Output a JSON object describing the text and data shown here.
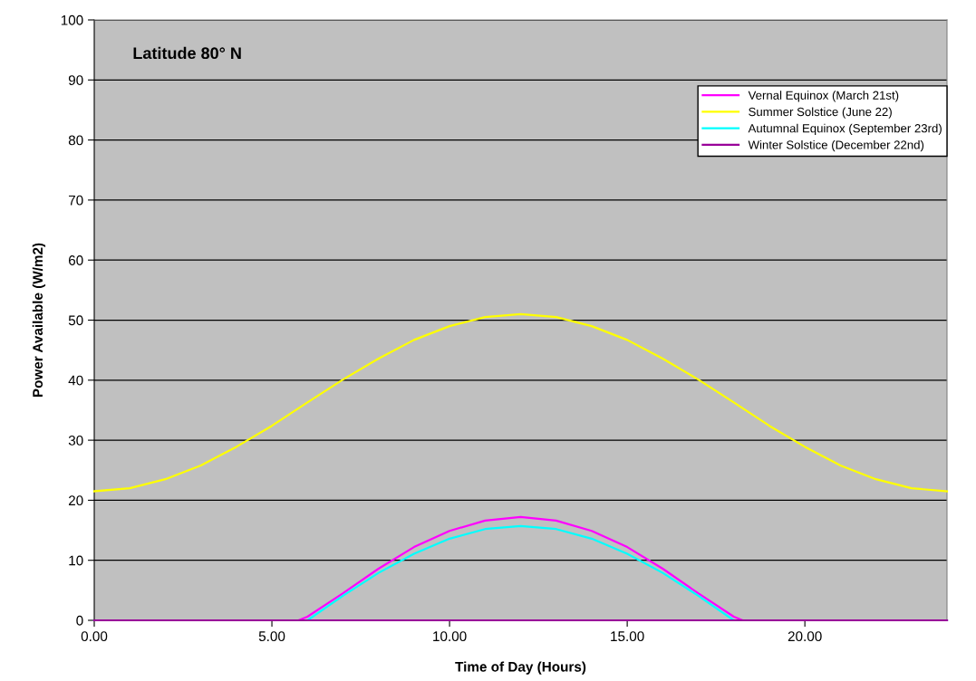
{
  "chart_data": {
    "type": "line",
    "xlabel": "Time of Day (Hours)",
    "ylabel": "Power Available (W/m2)",
    "annotations": [
      "Latitude 80° N"
    ],
    "xlim": [
      0,
      24
    ],
    "xticks": [
      {
        "value": 0,
        "label": "0.00"
      },
      {
        "value": 5,
        "label": "5.00"
      },
      {
        "value": 10,
        "label": "10.00"
      },
      {
        "value": 15,
        "label": "15.00"
      },
      {
        "value": 20,
        "label": "20.00"
      }
    ],
    "ylim": [
      0,
      100
    ],
    "yticks": [
      0,
      10,
      20,
      30,
      40,
      50,
      60,
      70,
      80,
      90,
      100
    ],
    "grid": "y",
    "legend": "top right",
    "marker": "none",
    "line_style": "solid",
    "series": [
      {
        "name": "Vernal Equinox (March 21st)",
        "color": "#ff00ff",
        "x": [
          0,
          5.75,
          6,
          7,
          8,
          9,
          10,
          11,
          12,
          13,
          14,
          15,
          16,
          17,
          18,
          18.25,
          24
        ],
        "values": [
          0,
          0,
          0.6,
          4.5,
          8.6,
          12.2,
          14.9,
          16.6,
          17.2,
          16.6,
          14.9,
          12.2,
          8.6,
          4.5,
          0.6,
          0,
          0
        ]
      },
      {
        "name": "Summer Solstice (June 22)",
        "color": "#ffff00",
        "x": [
          0,
          1,
          2,
          3,
          4,
          5,
          6,
          7,
          8,
          9,
          10,
          11,
          12,
          13,
          14,
          15,
          16,
          17,
          18,
          19,
          20,
          21,
          22,
          23,
          24
        ],
        "values": [
          21.5,
          22.0,
          23.5,
          25.8,
          28.9,
          32.4,
          36.3,
          40.1,
          43.6,
          46.7,
          49.0,
          50.5,
          51.0,
          50.5,
          49.0,
          46.7,
          43.6,
          40.1,
          36.3,
          32.4,
          28.9,
          25.8,
          23.5,
          22.0,
          21.5
        ]
      },
      {
        "name": "Autumnal Equinox (September 23rd)",
        "color": "#00ffff",
        "x": [
          0,
          6,
          7,
          8,
          9,
          10,
          11,
          12,
          13,
          14,
          15,
          16,
          17,
          18,
          24
        ],
        "values": [
          0,
          0,
          4.1,
          7.9,
          11.1,
          13.6,
          15.2,
          15.7,
          15.2,
          13.6,
          11.1,
          7.9,
          4.1,
          0,
          0
        ]
      },
      {
        "name": "Winter Solstice (December 22nd)",
        "color": "#990099",
        "x": [
          0,
          24
        ],
        "values": [
          0,
          0
        ]
      }
    ]
  }
}
